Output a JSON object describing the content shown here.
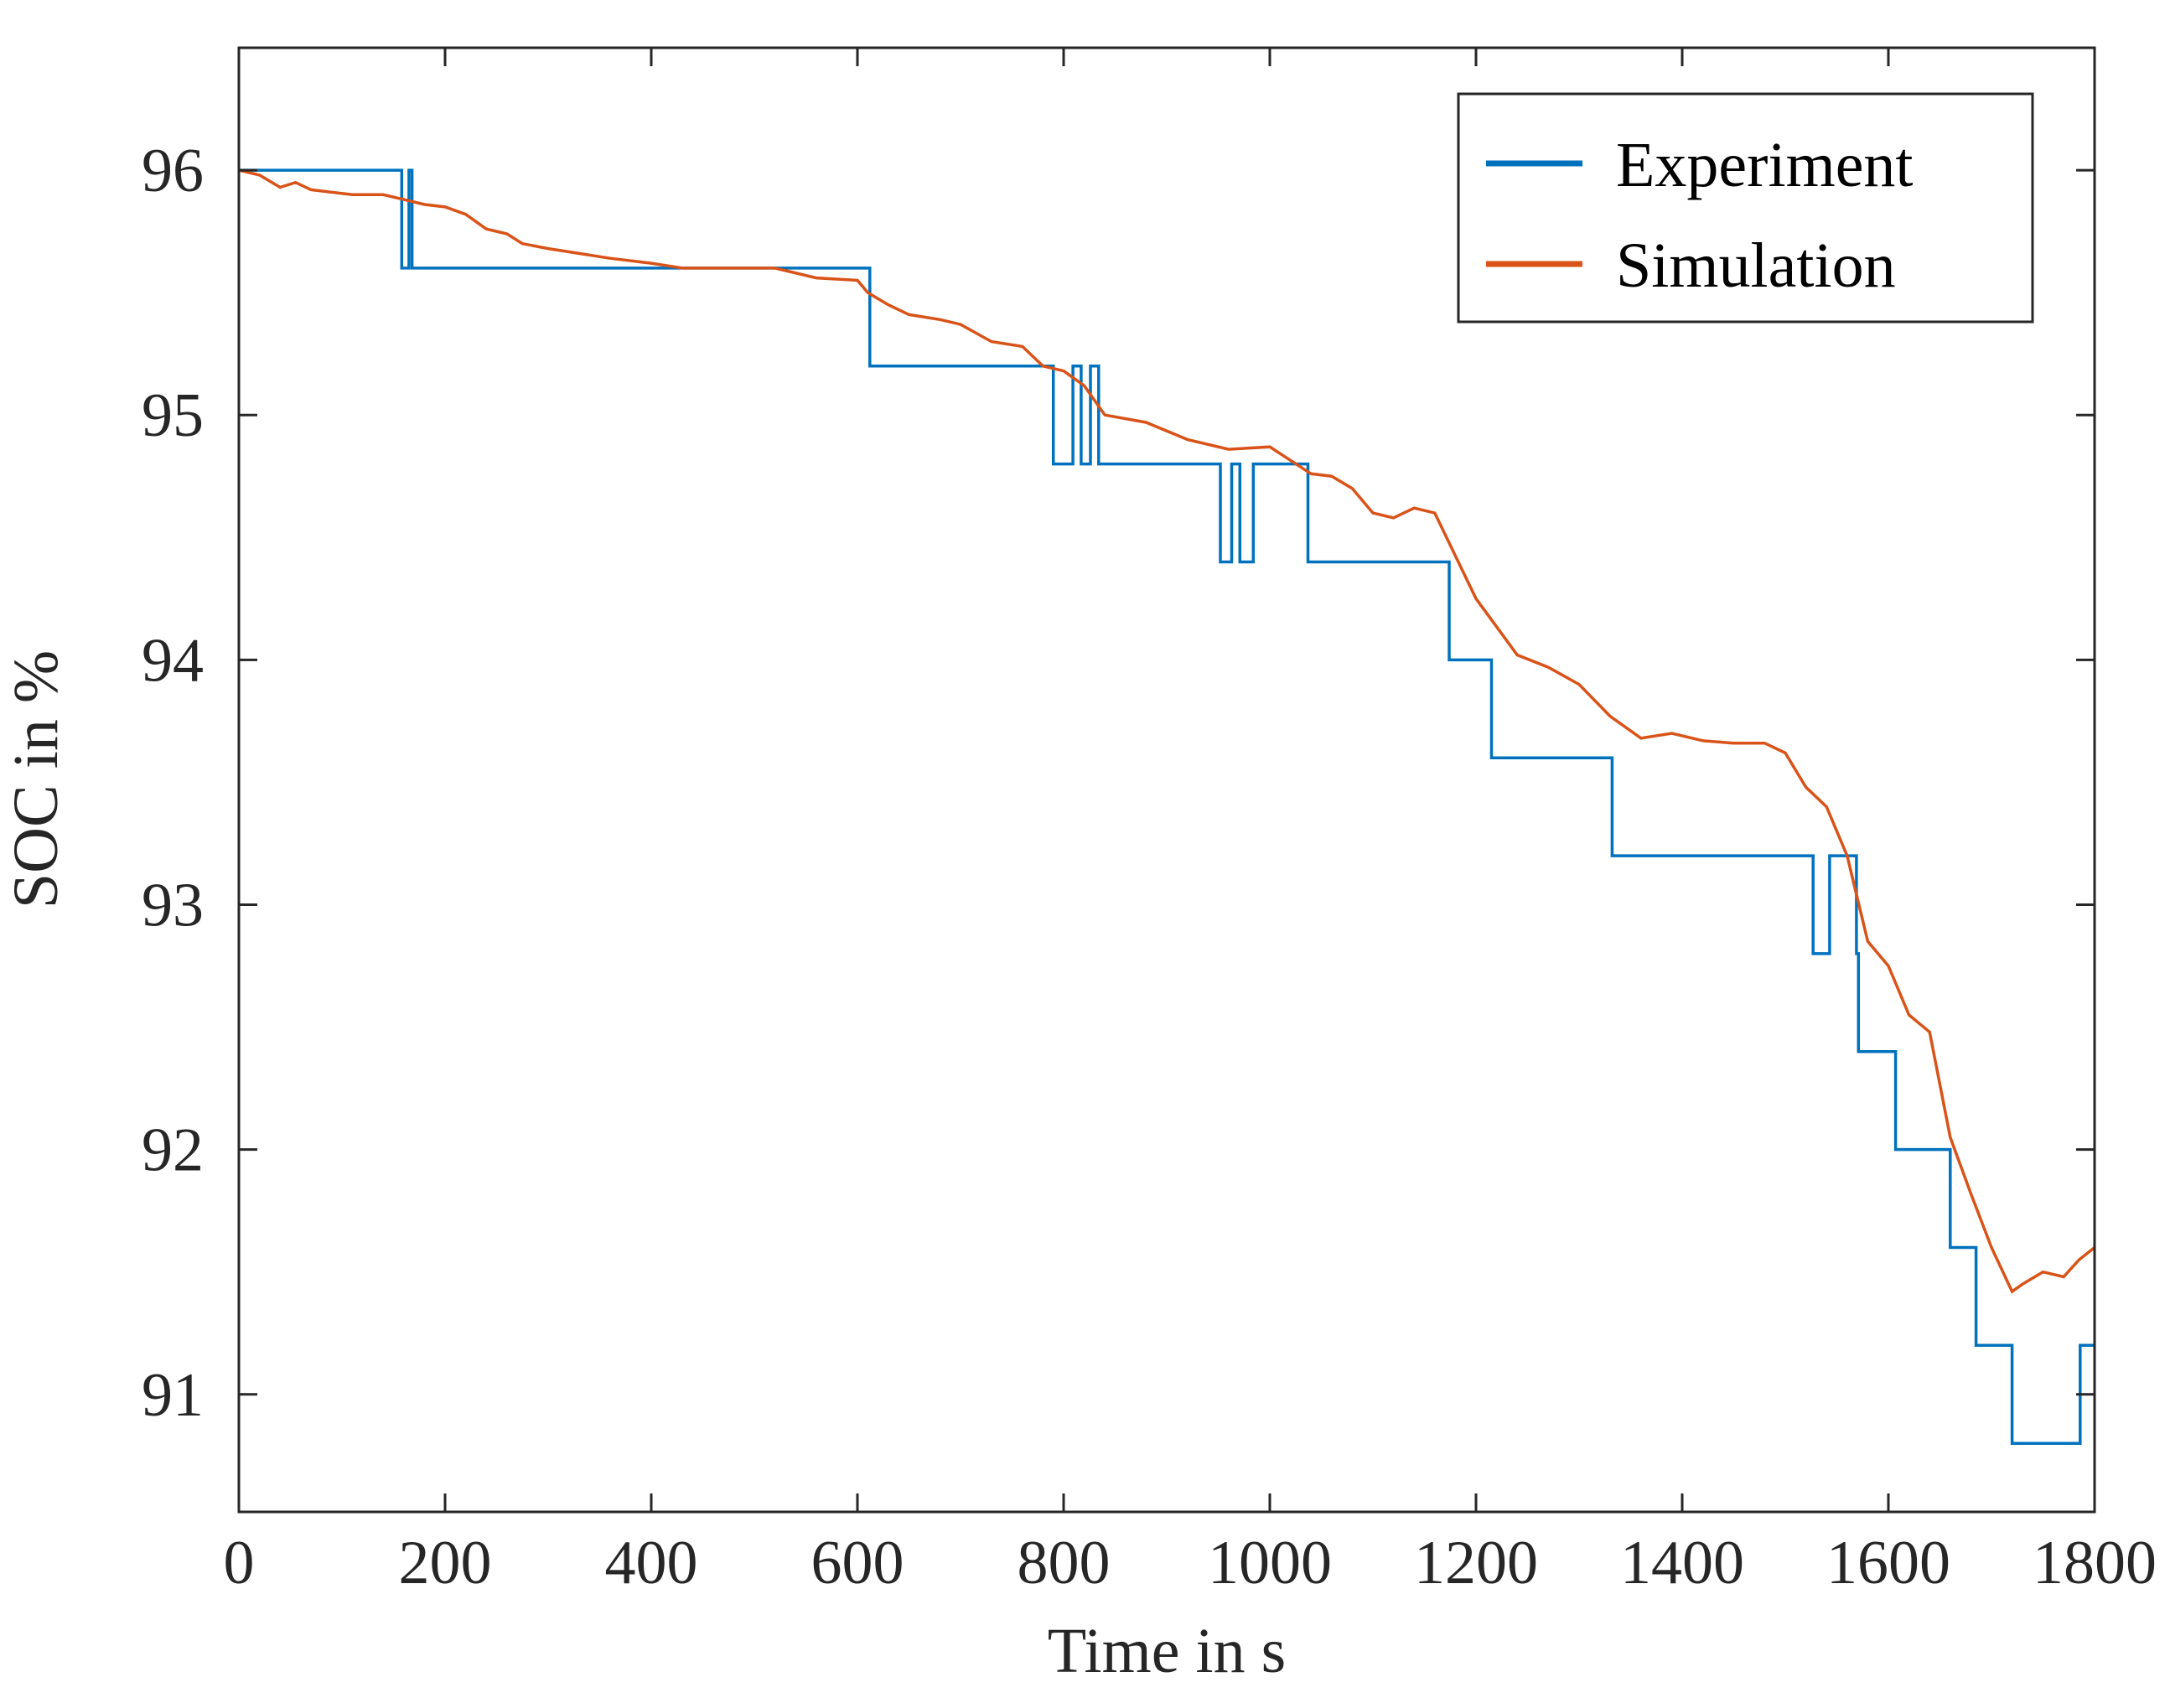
{
  "chart_data": {
    "type": "line",
    "title": "",
    "xlabel": "Time in s",
    "ylabel": "SOC in %",
    "xlim": [
      0,
      1800
    ],
    "ylim": [
      90.52,
      96.5
    ],
    "xticks": [
      0,
      200,
      400,
      600,
      800,
      1000,
      1200,
      1400,
      1600,
      1800
    ],
    "yticks": [
      91,
      92,
      93,
      94,
      95,
      96
    ],
    "grid": false,
    "legend_position": "top-right",
    "colors": {
      "Experiment": "#0072BD",
      "Simulation": "#D95319",
      "axes": "#262626"
    },
    "series": [
      {
        "name": "Experiment",
        "step": true,
        "x": [
          0,
          157,
          158,
          163,
          165,
          168,
          610,
          612,
          788,
          790,
          807,
          809,
          814,
          817,
          824,
          826,
          832,
          834,
          950,
          952,
          961,
          963,
          969,
          971,
          982,
          984,
          1035,
          1037,
          1172,
          1174,
          1213,
          1215,
          1330,
          1332,
          1525,
          1527,
          1541,
          1543,
          1569,
          1571,
          1605,
          1607,
          1658,
          1660,
          1683,
          1685,
          1718,
          1720,
          1784,
          1786,
          1800
        ],
        "y": [
          96.0,
          96.0,
          95.6,
          95.6,
          96.0,
          95.6,
          95.6,
          95.2,
          95.2,
          94.8,
          94.8,
          95.2,
          95.2,
          94.8,
          94.8,
          95.2,
          95.2,
          94.8,
          94.8,
          94.4,
          94.4,
          94.8,
          94.8,
          94.4,
          94.4,
          94.8,
          94.8,
          94.4,
          94.4,
          94.0,
          94.0,
          93.6,
          93.6,
          93.2,
          93.2,
          92.8,
          92.8,
          93.2,
          92.8,
          92.4,
          92.4,
          92.0,
          92.0,
          91.6,
          91.6,
          91.2,
          91.2,
          90.8,
          90.8,
          91.2,
          91.2
        ]
      },
      {
        "name": "Simulation",
        "step": false,
        "x": [
          0,
          20,
          40,
          55,
          70,
          90,
          110,
          140,
          160,
          180,
          200,
          220,
          240,
          260,
          275,
          300,
          330,
          360,
          400,
          430,
          470,
          520,
          560,
          600,
          610,
          630,
          650,
          680,
          700,
          730,
          760,
          780,
          800,
          820,
          840,
          880,
          920,
          960,
          1000,
          1040,
          1060,
          1080,
          1100,
          1120,
          1140,
          1160,
          1200,
          1240,
          1270,
          1300,
          1330,
          1360,
          1390,
          1420,
          1450,
          1480,
          1500,
          1520,
          1540,
          1560,
          1580,
          1600,
          1620,
          1640,
          1660,
          1680,
          1700,
          1720,
          1730,
          1750,
          1770,
          1785,
          1800
        ],
        "y": [
          96.0,
          95.98,
          95.93,
          95.95,
          95.92,
          95.91,
          95.9,
          95.9,
          95.88,
          95.86,
          95.85,
          95.82,
          95.76,
          95.74,
          95.7,
          95.68,
          95.66,
          95.64,
          95.62,
          95.6,
          95.6,
          95.6,
          95.56,
          95.55,
          95.5,
          95.45,
          95.41,
          95.39,
          95.37,
          95.3,
          95.28,
          95.2,
          95.18,
          95.12,
          95.0,
          94.97,
          94.9,
          94.86,
          94.87,
          94.76,
          94.75,
          94.7,
          94.6,
          94.58,
          94.62,
          94.6,
          94.25,
          94.02,
          93.97,
          93.9,
          93.77,
          93.68,
          93.7,
          93.67,
          93.66,
          93.66,
          93.62,
          93.48,
          93.4,
          93.2,
          92.85,
          92.75,
          92.55,
          92.48,
          92.05,
          91.82,
          91.6,
          91.42,
          91.45,
          91.5,
          91.48,
          91.55,
          91.6
        ]
      }
    ]
  }
}
